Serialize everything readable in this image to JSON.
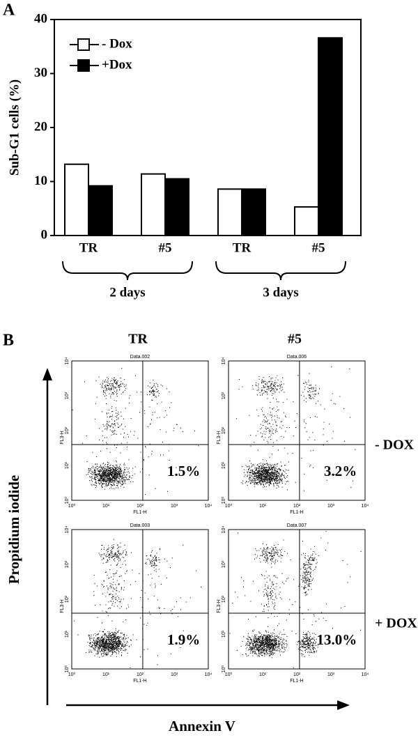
{
  "panel_labels": [
    "A",
    "B"
  ],
  "chart_data": {
    "type": "bar",
    "y_label": "Sub-G1 cells (%)",
    "categories": [
      "TR",
      "#5",
      "TR",
      "#5"
    ],
    "series": [
      {
        "name": "- Dox",
        "color": "#ffffff",
        "values": [
          13.2,
          11.4,
          8.6,
          5.3
        ]
      },
      {
        "name": "+Dox",
        "color": "#000000",
        "values": [
          9.2,
          10.5,
          8.6,
          36.6
        ]
      }
    ],
    "groups": [
      "2 days",
      "3 days"
    ],
    "ylim": [
      0,
      40
    ],
    "yticks": [
      0,
      10,
      20,
      30,
      40
    ]
  },
  "panel_b": {
    "columns": [
      "TR",
      "#5"
    ],
    "rows": [
      "- DOX",
      "+ DOX"
    ],
    "y_label": "Propidium iodide",
    "x_label": "Annexin V",
    "x_axis_name": "FL1-H",
    "y_axis_name": "FL3-H",
    "axis_ticks": [
      "10⁰",
      "10¹",
      "10²",
      "10³",
      "10⁴"
    ],
    "plots": [
      {
        "title": "Data.002",
        "percentage": "1.5%"
      },
      {
        "title": "Data.006",
        "percentage": "3.2%"
      },
      {
        "title": "Data.003",
        "percentage": "1.9%"
      },
      {
        "title": "Data.007",
        "percentage": "13.0%"
      }
    ]
  }
}
